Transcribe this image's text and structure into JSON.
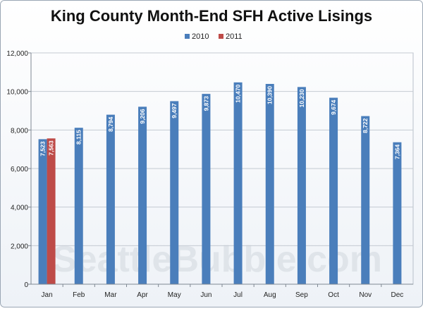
{
  "chart_data": {
    "type": "bar",
    "title": "King County Month-End SFH Active Lisings",
    "categories": [
      "Jan",
      "Feb",
      "Mar",
      "Apr",
      "May",
      "Jun",
      "Jul",
      "Aug",
      "Sep",
      "Oct",
      "Nov",
      "Dec"
    ],
    "series": [
      {
        "name": "2010",
        "color": "#4a7ebb",
        "values": [
          7523,
          8115,
          8794,
          9206,
          9497,
          9873,
          10470,
          10390,
          10230,
          9674,
          8722,
          7364
        ],
        "labels": [
          "7,523",
          "8,115",
          "8,794",
          "9,206",
          "9,497",
          "9,873",
          "10,470",
          "10,390",
          "10,230",
          "9,674",
          "8,722",
          "7,364"
        ]
      },
      {
        "name": "2011",
        "color": "#be4b48",
        "values": [
          7563,
          null,
          null,
          null,
          null,
          null,
          null,
          null,
          null,
          null,
          null,
          null
        ],
        "labels": [
          "7,563",
          "",
          "",
          "",
          "",
          "",
          "",
          "",
          "",
          "",
          "",
          ""
        ]
      }
    ],
    "ylim": [
      0,
      12000
    ],
    "yticks": [
      0,
      2000,
      4000,
      6000,
      8000,
      10000,
      12000
    ],
    "ytick_labels": [
      "0",
      "2,000",
      "4,000",
      "6,000",
      "8,000",
      "10,000",
      "12,000"
    ],
    "grid": true,
    "legend_position": "top",
    "watermark": "SeattleBubble.com"
  }
}
